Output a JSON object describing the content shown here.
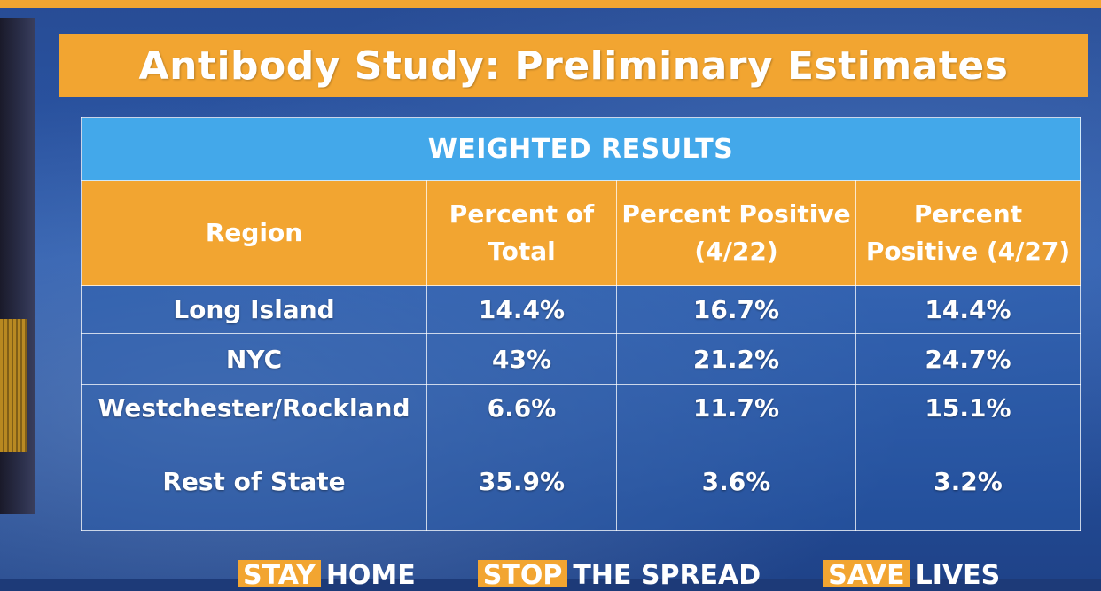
{
  "title": "Antibody Study: Preliminary Estimates",
  "table": {
    "caption": "WEIGHTED RESULTS",
    "headers": [
      "Region",
      "Percent of Total",
      "Percent Positive (4/22)",
      "Percent Positive (4/27)"
    ],
    "rows": [
      [
        "Long Island",
        "14.4%",
        "16.7%",
        "14.4%"
      ],
      [
        "NYC",
        "43%",
        "21.2%",
        "24.7%"
      ],
      [
        "Westchester/Rockland",
        "6.6%",
        "11.7%",
        "15.1%"
      ],
      [
        "Rest of State",
        "35.9%",
        "3.6%",
        "3.2%"
      ]
    ]
  },
  "footer": [
    {
      "highlight": "STAY",
      "rest": "HOME"
    },
    {
      "highlight": "STOP",
      "rest": "THE SPREAD"
    },
    {
      "highlight": "SAVE",
      "rest": "LIVES"
    }
  ],
  "colors": {
    "banner_orange": "#f2a531",
    "caption_blue": "#43a8ea",
    "background_blue": "#2a59ab"
  }
}
